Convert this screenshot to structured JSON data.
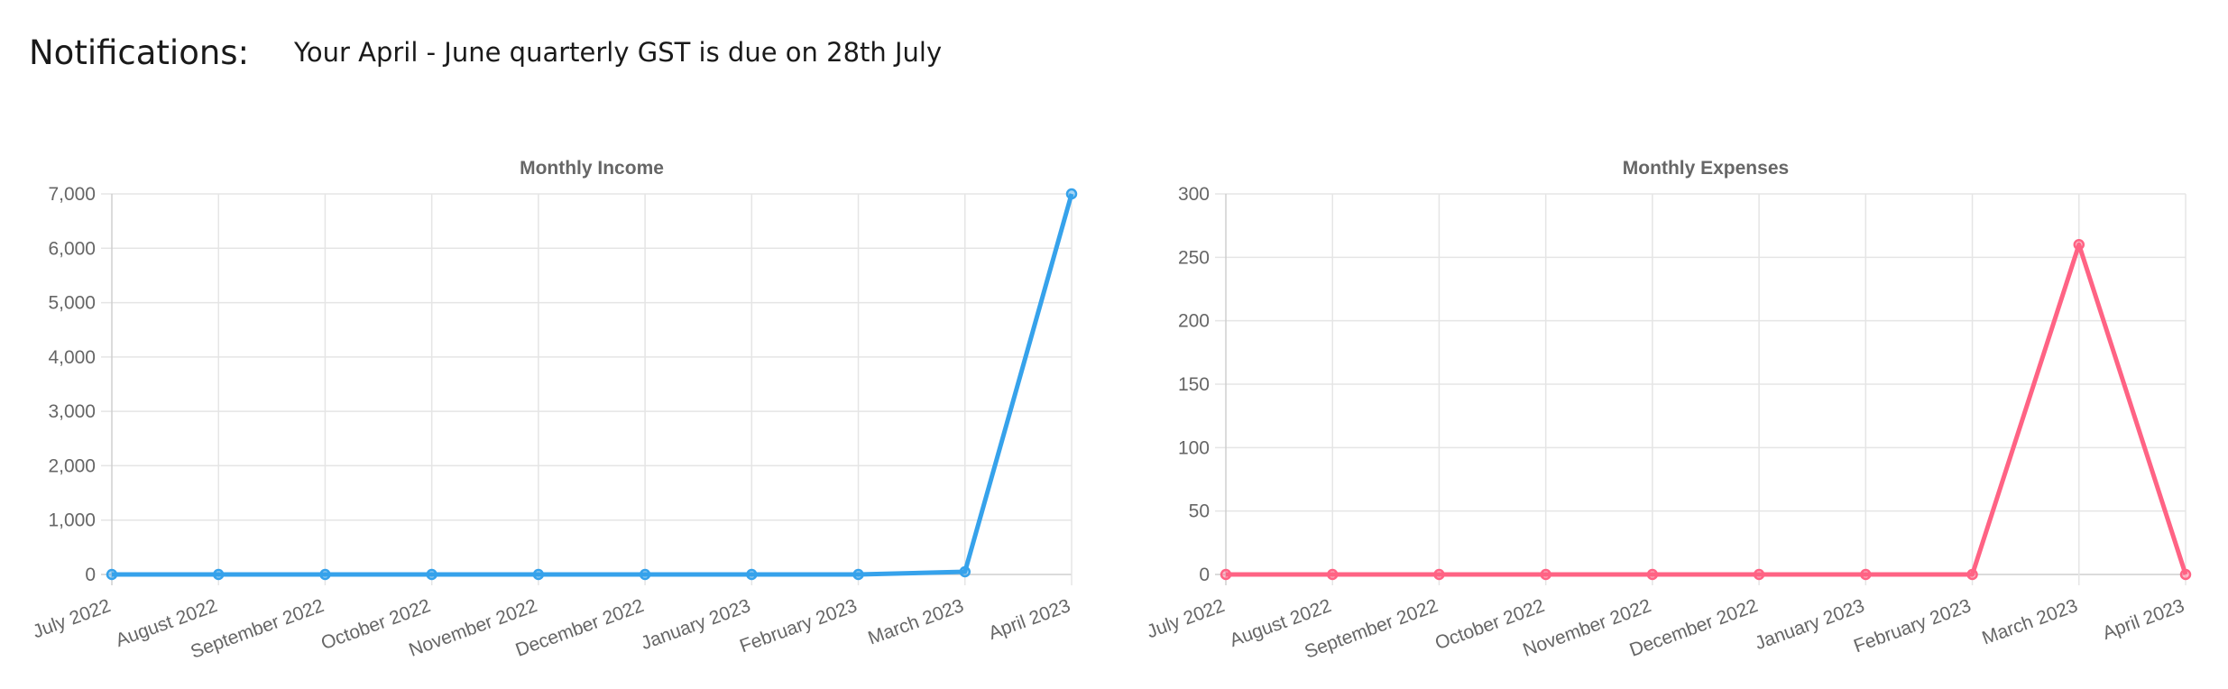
{
  "notifications": {
    "label": "Notifications:",
    "message": "Your April - June quarterly GST is due on 28th July"
  },
  "chart_data": [
    {
      "type": "line",
      "title": "Monthly Income",
      "categories": [
        "July 2022",
        "August 2022",
        "September 2022",
        "October 2022",
        "November 2022",
        "December 2022",
        "January 2023",
        "February 2023",
        "March 2023",
        "April 2023"
      ],
      "series": [
        {
          "values": [
            0,
            0,
            0,
            0,
            0,
            0,
            0,
            0,
            50,
            7000
          ],
          "color": "#36a2eb"
        }
      ],
      "ylim": [
        0,
        7000
      ],
      "yticks": [
        0,
        1000,
        2000,
        3000,
        4000,
        5000,
        6000,
        7000
      ],
      "ytick_labels": [
        "0",
        "1,000",
        "2,000",
        "3,000",
        "4,000",
        "5,000",
        "6,000",
        "7,000"
      ],
      "grid": true
    },
    {
      "type": "line",
      "title": "Monthly Expenses",
      "categories": [
        "July 2022",
        "August 2022",
        "September 2022",
        "October 2022",
        "November 2022",
        "December 2022",
        "January 2023",
        "February 2023",
        "March 2023",
        "April 2023"
      ],
      "series": [
        {
          "values": [
            0,
            0,
            0,
            0,
            0,
            0,
            0,
            0,
            260,
            0
          ],
          "color": "#ff6384"
        }
      ],
      "ylim": [
        0,
        300
      ],
      "yticks": [
        0,
        50,
        100,
        150,
        200,
        250,
        300
      ],
      "ytick_labels": [
        "0",
        "50",
        "100",
        "150",
        "200",
        "250",
        "300"
      ],
      "grid": true
    }
  ]
}
